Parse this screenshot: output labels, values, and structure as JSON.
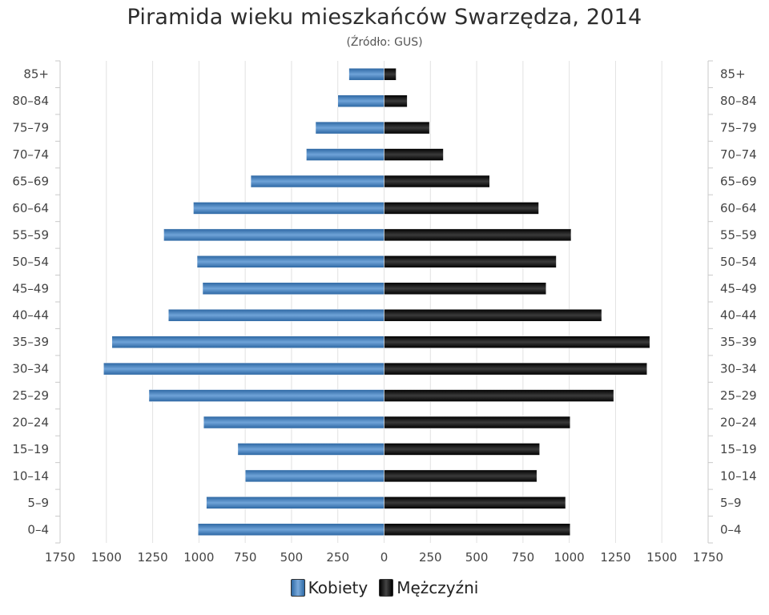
{
  "title": "Piramida wieku mieszkańców Swarzędza, 2014",
  "subtitle": "(Źródło: GUS)",
  "colors": {
    "women": "#3a78b8",
    "men": "#111111",
    "grid": "#e2e2e2",
    "axis": "#c8c8c8"
  },
  "chart_data": {
    "type": "bar",
    "orientation": "horizontal-population-pyramid",
    "categories": [
      "85+",
      "80–84",
      "75–79",
      "70–74",
      "65–69",
      "60–64",
      "55–59",
      "50–54",
      "45–49",
      "40–44",
      "35–39",
      "30–34",
      "25–29",
      "20–24",
      "15–19",
      "10–14",
      "5–9",
      "0–4"
    ],
    "series": [
      {
        "name": "Kobiety",
        "values": [
          190,
          250,
          370,
          420,
          720,
          1030,
          1190,
          1010,
          980,
          1165,
          1470,
          1515,
          1270,
          975,
          790,
          750,
          960,
          1005
        ]
      },
      {
        "name": "Mężczyźni",
        "values": [
          65,
          125,
          245,
          320,
          570,
          835,
          1010,
          930,
          875,
          1175,
          1435,
          1420,
          1240,
          1005,
          840,
          825,
          980,
          1005
        ]
      }
    ],
    "xlim": [
      -1750,
      1750
    ],
    "xticks": [
      "1750",
      "1500",
      "1250",
      "1000",
      "750",
      "500",
      "250",
      "0",
      "250",
      "500",
      "750",
      "1000",
      "1250",
      "1500",
      "1750"
    ],
    "grid": true,
    "legend_position": "bottom-center"
  }
}
